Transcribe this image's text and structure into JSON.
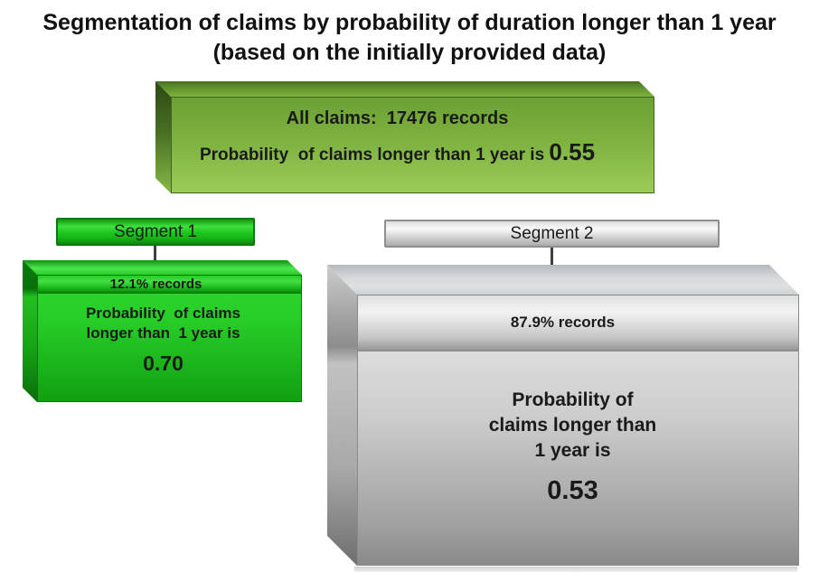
{
  "title": {
    "line1": "Segmentation of claims by probability of duration longer than 1 year",
    "line2": "(based on the initially provided data)"
  },
  "all_claims": {
    "records_line": "All claims:  17476 records",
    "probability_text": "Probability  of claims longer than 1 year is ",
    "probability_value": "0.55"
  },
  "segments": [
    {
      "name": "Segment 1",
      "records": "12.1% records",
      "probability_lines": [
        "Probability  of claims",
        "longer than  1 year is"
      ],
      "probability_value": "0.70",
      "color": "#1fc91f"
    },
    {
      "name": "Segment 2",
      "records": "87.9% records",
      "probability_lines": [
        "Probability of",
        "claims longer than",
        "1 year is"
      ],
      "probability_value": "0.53",
      "color": "#cdcdcd"
    }
  ],
  "colors": {
    "all_claims_green": "#7fb341",
    "segment1_green": "#1fc91f",
    "segment2_silver": "#cdcdcd",
    "text": "#1a1a1a",
    "connector": "#3f3f3f"
  }
}
